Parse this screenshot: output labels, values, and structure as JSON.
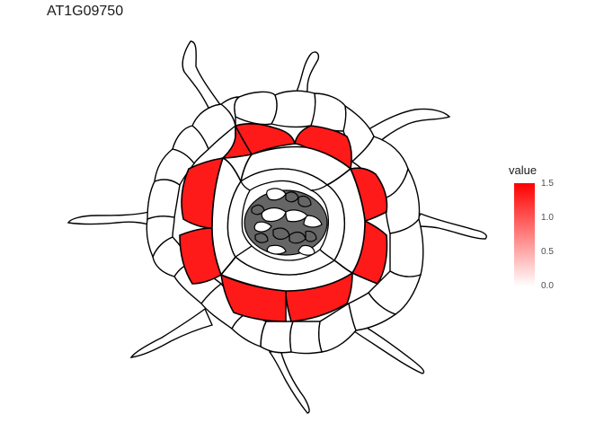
{
  "title": "AT1G09750",
  "legend": {
    "title": "value",
    "ticks": [
      "1.5",
      "1.0",
      "0.5",
      "0.0"
    ],
    "color_high": "#ff0000",
    "color_low": "#ffffff"
  },
  "colors": {
    "high_expression": "#ff1a1a",
    "vascular": "#666666",
    "none": "#ffffff",
    "outline": "#000000"
  }
}
